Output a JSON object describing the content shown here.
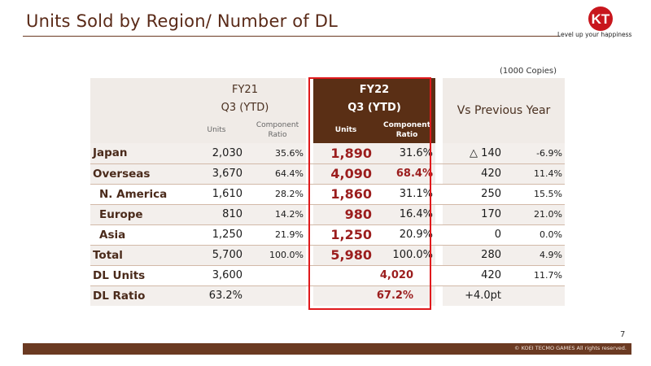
{
  "title": "Units Sold by Region/ Number of DL",
  "logo": {
    "mark": "KT",
    "tagline": "Level up your happiness"
  },
  "unit_note": "(1000 Copies)",
  "headers": {
    "fy21_line1": "FY21",
    "fy21_line2": "Q3 (YTD)",
    "fy22_line1": "FY22",
    "fy22_line2": "Q3 (YTD)",
    "vs": "Vs Previous Year",
    "units": "Units",
    "component_ratio_1": "Component",
    "component_ratio_2": "Ratio"
  },
  "rows": [
    {
      "label": "Japan",
      "fy21_units": "2,030",
      "fy21_ratio": "35.6%",
      "fy22_units": "1,890",
      "fy22_ratio": "31.6%",
      "vs_units": "△ 140",
      "vs_ratio": "-6.9%"
    },
    {
      "label": "Overseas",
      "fy21_units": "3,670",
      "fy21_ratio": "64.4%",
      "fy22_units": "4,090",
      "fy22_ratio": "68.4%",
      "vs_units": "420",
      "vs_ratio": "11.4%"
    },
    {
      "label": "N. America",
      "fy21_units": "1,610",
      "fy21_ratio": "28.2%",
      "fy22_units": "1,860",
      "fy22_ratio": "31.1%",
      "vs_units": "250",
      "vs_ratio": "15.5%"
    },
    {
      "label": "Europe",
      "fy21_units": "810",
      "fy21_ratio": "14.2%",
      "fy22_units": "980",
      "fy22_ratio": "16.4%",
      "vs_units": "170",
      "vs_ratio": "21.0%"
    },
    {
      "label": "Asia",
      "fy21_units": "1,250",
      "fy21_ratio": "21.9%",
      "fy22_units": "1,250",
      "fy22_ratio": "20.9%",
      "vs_units": "0",
      "vs_ratio": "0.0%"
    },
    {
      "label": "Total",
      "fy21_units": "5,700",
      "fy21_ratio": "100.0%",
      "fy22_units": "5,980",
      "fy22_ratio": "100.0%",
      "vs_units": "280",
      "vs_ratio": "4.9%"
    },
    {
      "label": "DL Units",
      "fy21_units": "3,600",
      "fy22_units": "4,020",
      "vs_units": "420",
      "vs_ratio": "11.7%"
    },
    {
      "label": "DL Ratio",
      "fy21_units": "63.2%",
      "fy22_units": "67.2%",
      "vs_units": "+4.0pt"
    }
  ],
  "page_number": "7",
  "copyright": "© KOEI TECMO GAMES All rights reserved.",
  "colors": {
    "brand_brown": "#6b3a22",
    "header_fill": "#5a2f15",
    "highlight_red": "#e0191c",
    "value_red": "#9b1d1d"
  }
}
